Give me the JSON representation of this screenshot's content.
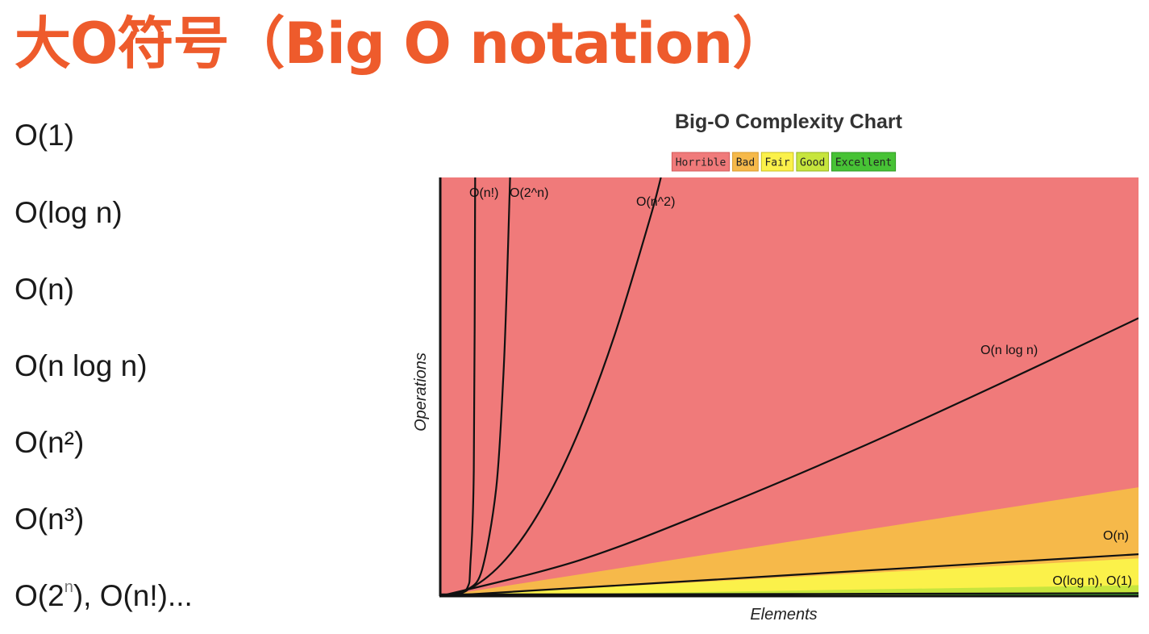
{
  "slide": {
    "title": "大O符号（Big O notation）",
    "list": [
      {
        "base": "O(1)",
        "sup": "",
        "rest": ""
      },
      {
        "base": "O(log n)",
        "sup": "",
        "rest": ""
      },
      {
        "base": "O(n)",
        "sup": "",
        "rest": ""
      },
      {
        "base": "O(n log n)",
        "sup": "",
        "rest": ""
      },
      {
        "base": "O(n²)",
        "sup": "",
        "rest": ""
      },
      {
        "base": "O(n³)",
        "sup": "",
        "rest": ""
      },
      {
        "base": "O(2",
        "sup": "n",
        "rest": "), O(n!)..."
      }
    ]
  },
  "chart_data": {
    "type": "line",
    "title": "Big-O Complexity Chart",
    "xlabel": "Elements",
    "ylabel": "Operations",
    "xlim": [
      0,
      100
    ],
    "ylim": [
      0,
      1000
    ],
    "grid": false,
    "legend_position": "top",
    "legend": [
      {
        "name": "Horrible",
        "color": "#f07a7a",
        "border": "#d35a5a"
      },
      {
        "name": "Bad",
        "color": "#f6b94a",
        "border": "#d89a2a"
      },
      {
        "name": "Fair",
        "color": "#fbf14a",
        "border": "#c9bf20"
      },
      {
        "name": "Good",
        "color": "#c7e53d",
        "border": "#94b41f"
      },
      {
        "name": "Excellent",
        "color": "#47c235",
        "border": "#2f9a21"
      }
    ],
    "regions": [
      {
        "name": "Horrible",
        "color": "#f07a7a",
        "boundary_slope": 10
      },
      {
        "name": "Bad",
        "color": "#f6b94a",
        "boundary_slope": 2.6
      },
      {
        "name": "Fair",
        "color": "#fbf14a",
        "boundary_slope": 0.9
      },
      {
        "name": "Good",
        "color": "#c7e53d",
        "boundary_slope": 0.26
      },
      {
        "name": "Excellent",
        "color": "#47c235",
        "boundary_slope": 0.05
      }
    ],
    "series": [
      {
        "name": "O(n!)",
        "values": [
          [
            0,
            0
          ],
          [
            1,
            1
          ],
          [
            2,
            2
          ],
          [
            3,
            6
          ],
          [
            4,
            24
          ],
          [
            4.3,
            70
          ],
          [
            4.8,
            300
          ],
          [
            5,
            1000
          ]
        ]
      },
      {
        "name": "O(2^n)",
        "values": [
          [
            0,
            1
          ],
          [
            2,
            4
          ],
          [
            4,
            16
          ],
          [
            6,
            64
          ],
          [
            8,
            256
          ],
          [
            9,
            512
          ],
          [
            9.5,
            724
          ],
          [
            10,
            1000
          ]
        ]
      },
      {
        "name": "O(n^2)",
        "values": [
          [
            0,
            0
          ],
          [
            5,
            25
          ],
          [
            10,
            100
          ],
          [
            15,
            225
          ],
          [
            20,
            400
          ],
          [
            25,
            625
          ],
          [
            30,
            900
          ],
          [
            31.6,
            1000
          ]
        ]
      },
      {
        "name": "O(n log n)",
        "values": [
          [
            0,
            0
          ],
          [
            20,
            86
          ],
          [
            40,
            213
          ],
          [
            60,
            354
          ],
          [
            80,
            506
          ],
          [
            100,
            664
          ]
        ]
      },
      {
        "name": "O(n)",
        "values": [
          [
            0,
            0
          ],
          [
            50,
            50
          ],
          [
            100,
            100
          ]
        ]
      },
      {
        "name": "O(log n), O(1)",
        "values": [
          [
            0,
            4
          ],
          [
            50,
            5
          ],
          [
            100,
            7
          ]
        ]
      }
    ]
  }
}
